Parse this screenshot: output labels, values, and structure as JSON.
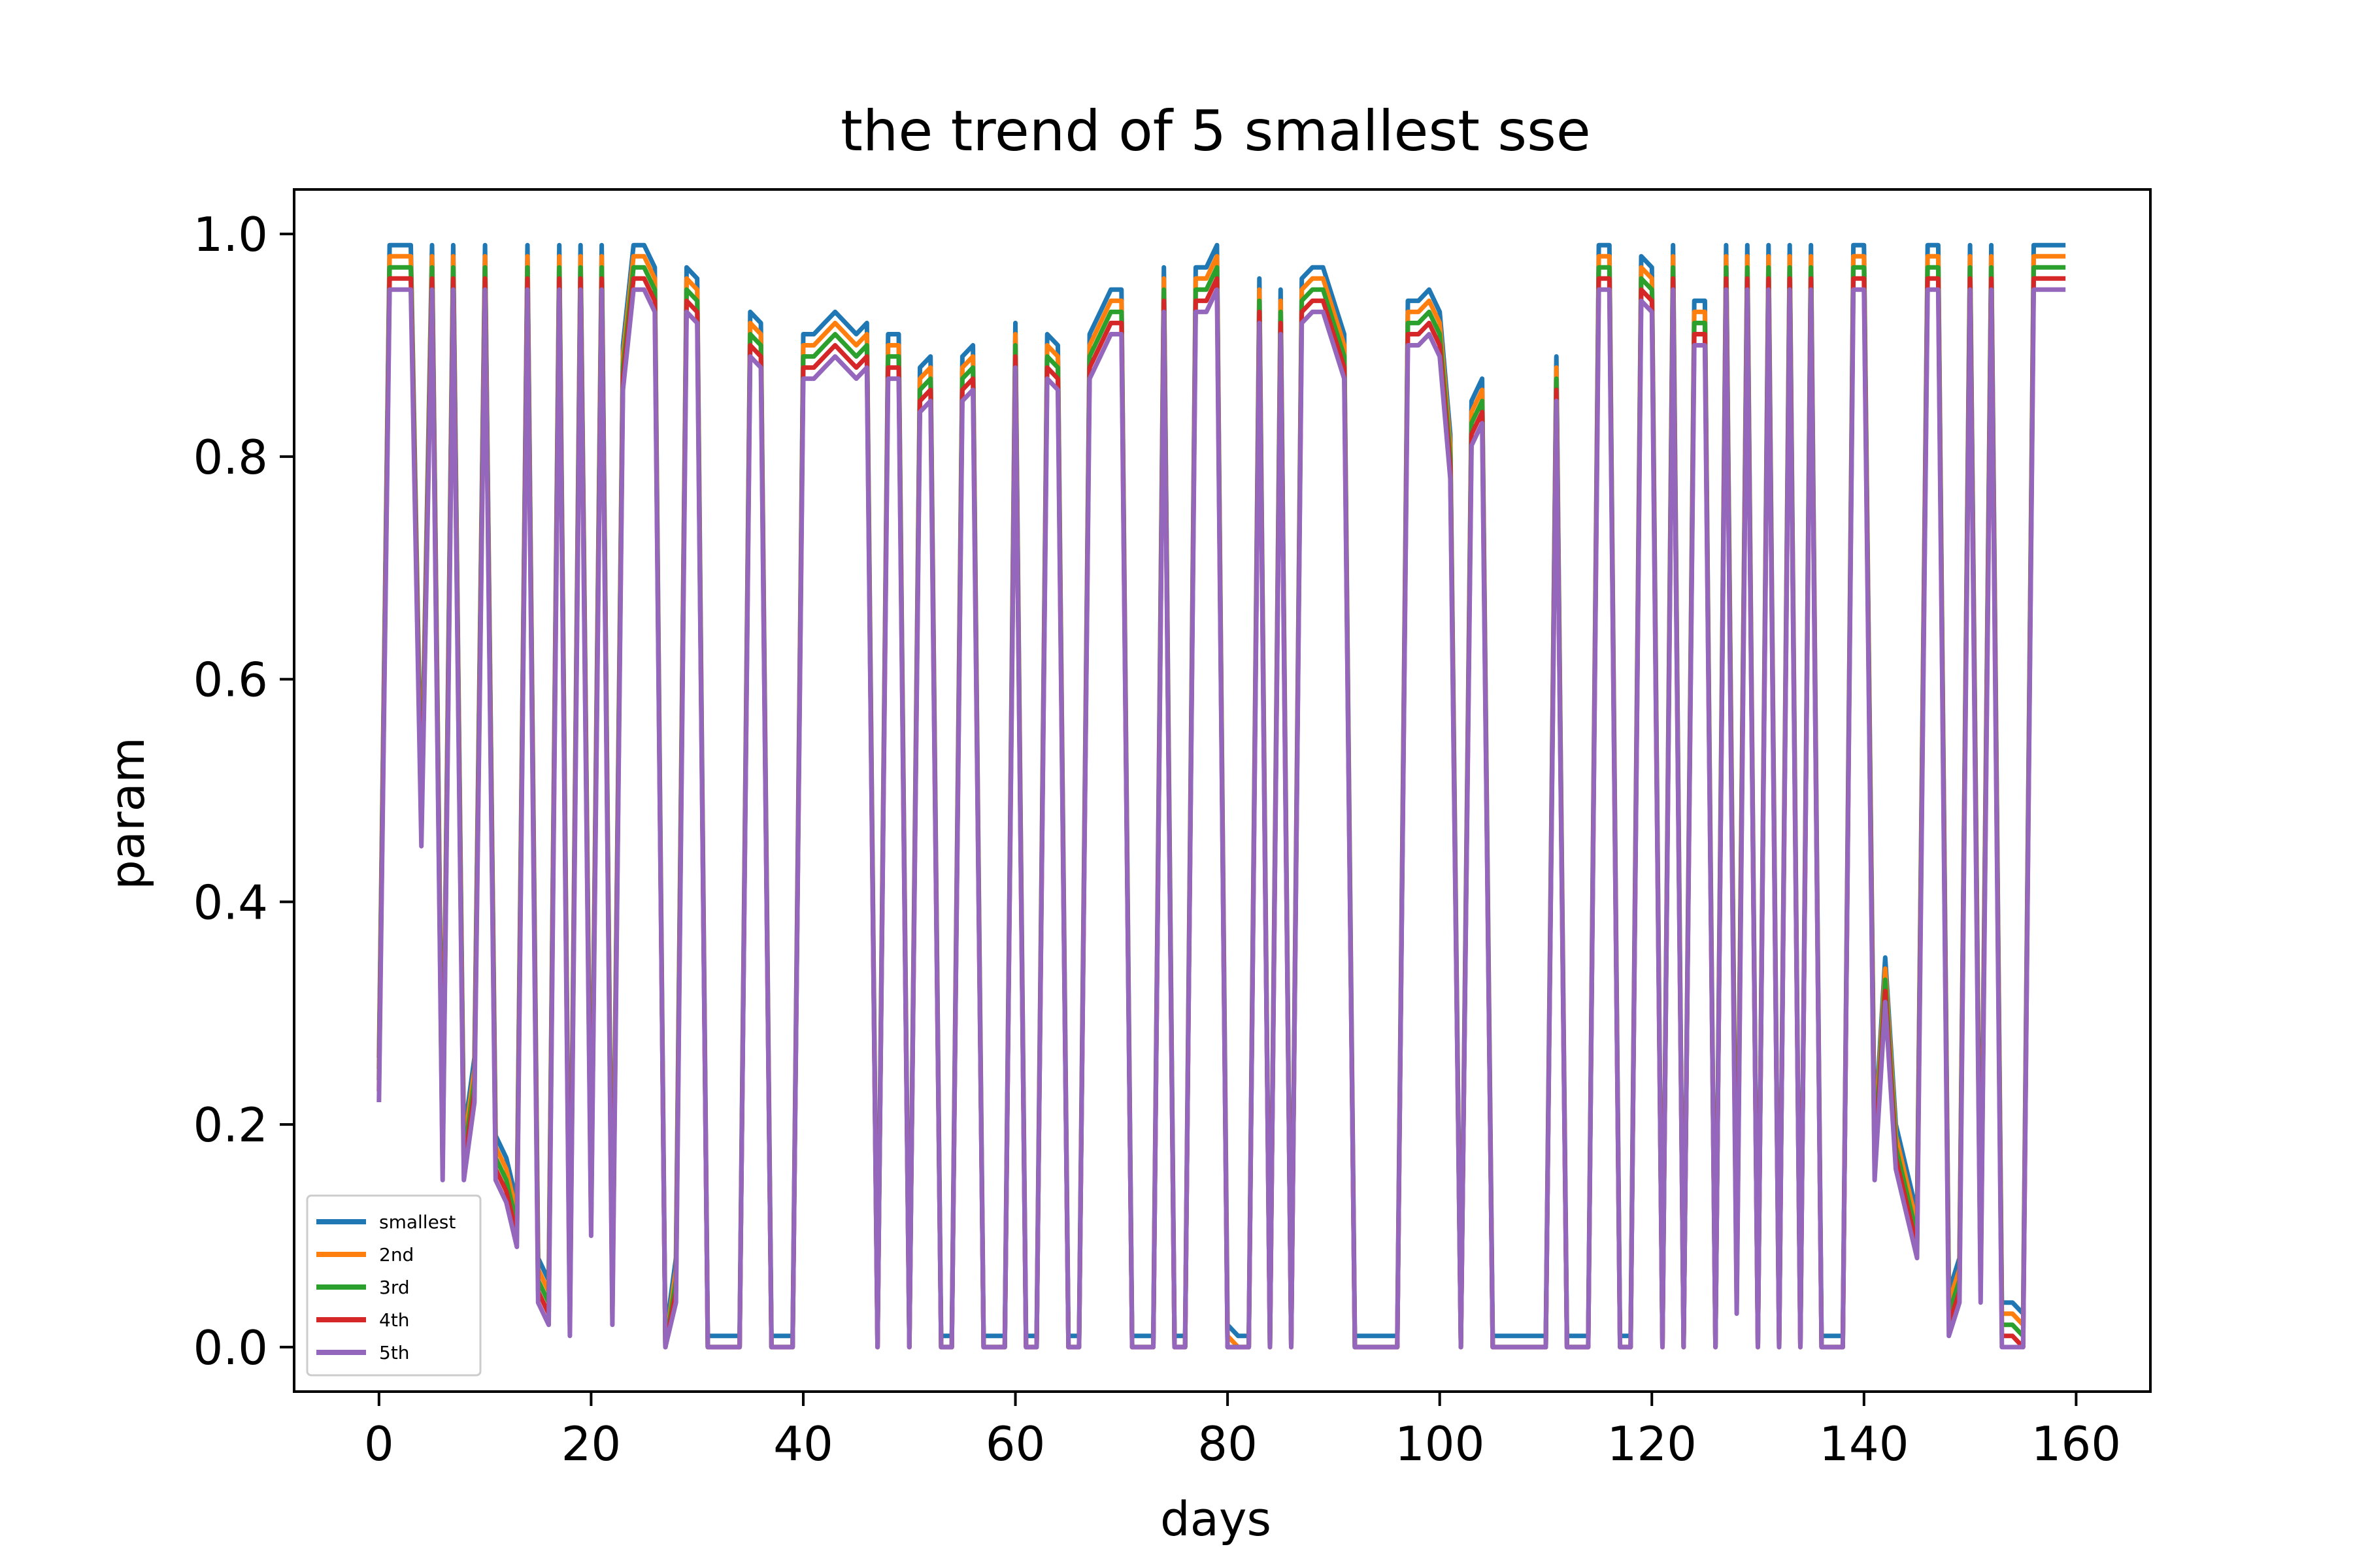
{
  "chart_data": {
    "type": "line",
    "title": "the trend of 5 smallest sse",
    "xlabel": "days",
    "ylabel": "param",
    "xlim": [
      -8,
      167
    ],
    "ylim": [
      -0.04,
      1.04
    ],
    "xticks": [
      0,
      20,
      40,
      60,
      80,
      100,
      120,
      140,
      160
    ],
    "xtick_labels": [
      "0",
      "20",
      "40",
      "60",
      "80",
      "100",
      "120",
      "140",
      "160"
    ],
    "yticks": [
      0.0,
      0.2,
      0.4,
      0.6,
      0.8,
      1.0
    ],
    "ytick_labels": [
      "0.0",
      "0.2",
      "0.4",
      "0.6",
      "0.8",
      "1.0"
    ],
    "grid": false,
    "legend_position": "lower-left",
    "x": [
      0,
      1,
      2,
      3,
      4,
      5,
      6,
      7,
      8,
      9,
      10,
      11,
      12,
      13,
      14,
      15,
      16,
      17,
      18,
      19,
      20,
      21,
      22,
      23,
      24,
      25,
      26,
      27,
      28,
      29,
      30,
      31,
      32,
      33,
      34,
      35,
      36,
      37,
      38,
      39,
      40,
      41,
      42,
      43,
      44,
      45,
      46,
      47,
      48,
      49,
      50,
      51,
      52,
      53,
      54,
      55,
      56,
      57,
      58,
      59,
      60,
      61,
      62,
      63,
      64,
      65,
      66,
      67,
      68,
      69,
      70,
      71,
      72,
      73,
      74,
      75,
      76,
      77,
      78,
      79,
      80,
      81,
      82,
      83,
      84,
      85,
      86,
      87,
      88,
      89,
      90,
      91,
      92,
      93,
      94,
      95,
      96,
      97,
      98,
      99,
      100,
      101,
      102,
      103,
      104,
      105,
      106,
      107,
      108,
      109,
      110,
      111,
      112,
      113,
      114,
      115,
      116,
      117,
      118,
      119,
      120,
      121,
      122,
      123,
      124,
      125,
      126,
      127,
      128,
      129,
      130,
      131,
      132,
      133,
      134,
      135,
      136,
      137,
      138,
      139,
      140,
      141,
      142,
      143,
      144,
      145,
      146,
      147,
      148,
      149,
      150,
      151,
      152,
      153,
      154,
      155,
      156,
      157,
      158,
      159
    ],
    "base": [
      0.26,
      0.99,
      0.99,
      0.99,
      0.49,
      0.99,
      0.19,
      0.99,
      0.19,
      0.26,
      0.99,
      0.19,
      0.17,
      0.13,
      0.99,
      0.08,
      0.06,
      0.99,
      0.05,
      0.99,
      0.14,
      0.99,
      0.06,
      0.9,
      0.99,
      0.99,
      0.97,
      0.01,
      0.08,
      0.97,
      0.96,
      0.01,
      0.01,
      0.01,
      0.01,
      0.93,
      0.92,
      0.01,
      0.01,
      0.01,
      0.91,
      0.91,
      0.92,
      0.93,
      0.92,
      0.91,
      0.92,
      0.01,
      0.91,
      0.91,
      0.01,
      0.88,
      0.89,
      0.01,
      0.01,
      0.89,
      0.9,
      0.01,
      0.01,
      0.01,
      0.92,
      0.01,
      0.01,
      0.91,
      0.9,
      0.01,
      0.01,
      0.91,
      0.93,
      0.95,
      0.95,
      0.01,
      0.01,
      0.01,
      0.97,
      0.01,
      0.01,
      0.97,
      0.97,
      0.99,
      0.02,
      0.01,
      0.01,
      0.96,
      0.01,
      0.95,
      0.01,
      0.96,
      0.97,
      0.97,
      0.94,
      0.91,
      0.01,
      0.01,
      0.01,
      0.01,
      0.01,
      0.94,
      0.94,
      0.95,
      0.93,
      0.82,
      0.01,
      0.85,
      0.87,
      0.01,
      0.01,
      0.01,
      0.01,
      0.01,
      0.01,
      0.89,
      0.01,
      0.01,
      0.01,
      0.99,
      0.99,
      0.01,
      0.01,
      0.98,
      0.97,
      0.01,
      0.99,
      0.01,
      0.94,
      0.94,
      0.01,
      0.99,
      0.07,
      0.99,
      0.01,
      0.99,
      0.01,
      0.99,
      0.01,
      0.99,
      0.01,
      0.01,
      0.01,
      0.99,
      0.99,
      0.19,
      0.35,
      0.2,
      0.16,
      0.12,
      0.99,
      0.99,
      0.05,
      0.08,
      0.99,
      0.08,
      0.99,
      0.04,
      0.04,
      0.03,
      0.99,
      0.99,
      0.99,
      0.99
    ],
    "series": [
      {
        "name": "smallest",
        "offset": 0.0,
        "color": "#1f77b4"
      },
      {
        "name": "2nd",
        "offset": -0.01,
        "color": "#ff7f0e"
      },
      {
        "name": "3rd",
        "offset": -0.02,
        "color": "#2ca02c"
      },
      {
        "name": "4th",
        "offset": -0.03,
        "color": "#d62728"
      },
      {
        "name": "5th",
        "offset": -0.04,
        "color": "#9467bd"
      }
    ]
  }
}
